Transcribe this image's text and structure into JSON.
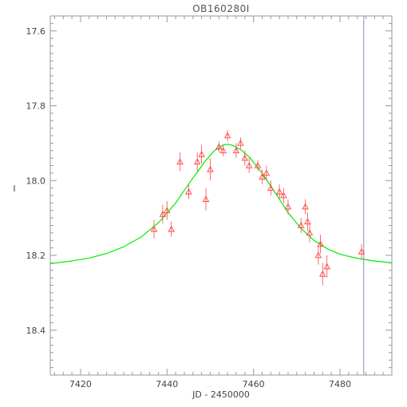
{
  "chart_data": {
    "type": "scatter",
    "title": "OB160280I",
    "xlabel": "JD - 2450000",
    "ylabel": "I",
    "xlim": [
      7413,
      7492
    ],
    "ylim": [
      18.52,
      17.56
    ],
    "y_inverted": true,
    "x_ticks": [
      7420,
      7440,
      7460,
      7480
    ],
    "y_ticks": [
      17.6,
      17.8,
      18.0,
      18.2,
      18.4
    ],
    "grid": false,
    "series": [
      {
        "kind": "model-curve",
        "color": "#00ee00",
        "x": [
          7413,
          7418,
          7422,
          7426,
          7430,
          7434,
          7438,
          7442,
          7446,
          7449,
          7451,
          7453,
          7454,
          7455,
          7457,
          7459,
          7462,
          7465,
          7468,
          7471,
          7474,
          7477,
          7480,
          7484,
          7488,
          7492
        ],
        "y": [
          18.222,
          18.215,
          18.207,
          18.195,
          18.177,
          18.151,
          18.113,
          18.06,
          17.993,
          17.946,
          17.92,
          17.905,
          17.903,
          17.905,
          17.917,
          17.937,
          17.98,
          18.032,
          18.086,
          18.128,
          18.16,
          18.182,
          18.197,
          18.208,
          18.215,
          18.22
        ]
      },
      {
        "kind": "data-points",
        "color": "#ff4444",
        "x": [
          7437,
          7439,
          7440,
          7441,
          7443,
          7445,
          7447,
          7448,
          7449,
          7450,
          7452,
          7453,
          7454,
          7456,
          7457,
          7458,
          7459,
          7461,
          7462,
          7463,
          7464,
          7466,
          7467,
          7468,
          7471,
          7472,
          7472.5,
          7473,
          7475,
          7475.5,
          7476,
          7477,
          7485
        ],
        "y": [
          18.13,
          18.09,
          18.08,
          18.13,
          17.95,
          18.03,
          17.95,
          17.93,
          18.05,
          17.97,
          17.91,
          17.92,
          17.88,
          17.92,
          17.9,
          17.94,
          17.96,
          17.96,
          17.99,
          17.98,
          18.02,
          18.03,
          18.04,
          18.07,
          18.12,
          18.07,
          18.11,
          18.14,
          18.2,
          18.17,
          18.25,
          18.23,
          18.19
        ],
        "yerr": [
          0.025,
          0.025,
          0.025,
          0.02,
          0.025,
          0.02,
          0.025,
          0.025,
          0.03,
          0.03,
          0.015,
          0.015,
          0.015,
          0.02,
          0.015,
          0.02,
          0.02,
          0.015,
          0.02,
          0.02,
          0.02,
          0.02,
          0.02,
          0.02,
          0.02,
          0.02,
          0.025,
          0.025,
          0.025,
          0.025,
          0.03,
          0.03,
          0.02
        ]
      }
    ],
    "marker_line": {
      "x": 7485.5,
      "color": "#8888cc"
    }
  }
}
